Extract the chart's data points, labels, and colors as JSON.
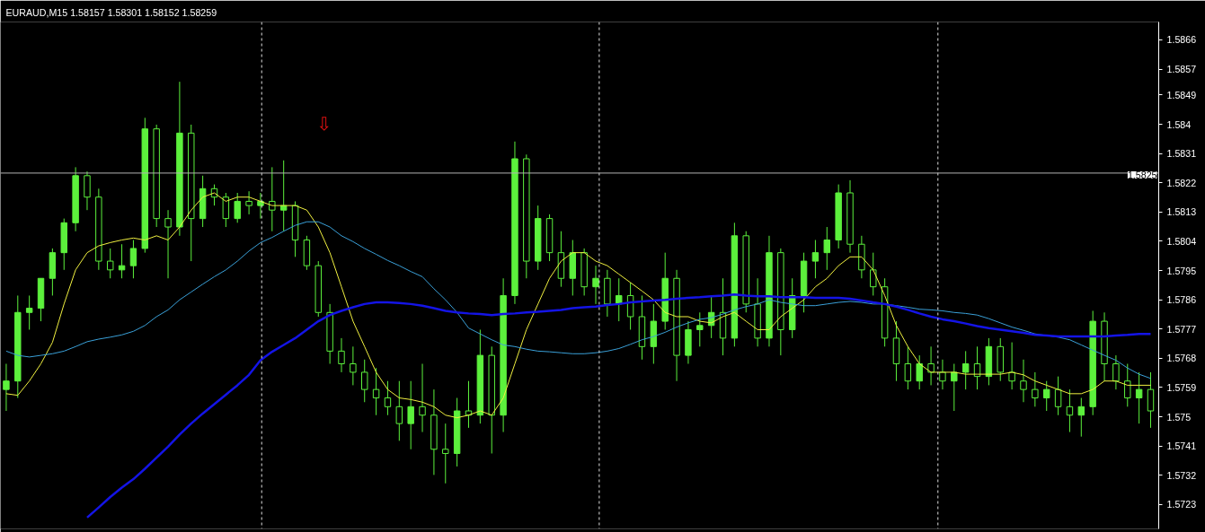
{
  "chart_data": {
    "type": "candlestick",
    "title": "EURAUD,M15  1.58157 1.58301 1.58152 1.58259",
    "color": "#5cf03c",
    "categories": [
      null,
      null,
      null,
      null,
      null,
      null,
      null,
      null,
      null,
      null,
      null,
      null,
      null,
      null,
      null,
      null,
      null,
      null,
      null,
      null,
      null,
      null,
      null,
      null,
      null,
      null,
      null,
      null,
      null,
      null,
      null,
      null,
      null,
      null,
      null,
      null,
      null,
      null,
      null,
      null,
      null,
      null,
      null,
      null,
      null,
      null,
      null,
      null,
      null,
      null,
      null,
      null,
      null,
      null,
      null,
      null,
      null,
      null,
      null,
      null,
      null,
      null,
      null,
      null,
      null,
      null,
      null,
      null,
      null,
      null,
      null,
      null,
      null,
      null,
      null,
      null,
      null,
      null,
      null,
      null,
      null,
      null,
      null,
      null,
      null,
      null,
      null,
      null,
      null,
      null,
      null,
      null,
      null,
      null,
      null,
      null,
      null,
      null,
      null,
      null
    ],
    "ohlc": [
      [
        1.57584,
        1.57663,
        1.57518,
        1.5761
      ],
      [
        1.5761,
        1.57873,
        1.57558,
        1.57821
      ],
      [
        1.57821,
        1.57873,
        1.57768,
        1.57834
      ],
      [
        1.57834,
        1.57926,
        1.57794,
        1.57926
      ],
      [
        1.57926,
        1.58018,
        1.57873,
        1.58005
      ],
      [
        1.58005,
        1.5811,
        1.57952,
        1.58097
      ],
      [
        1.58097,
        1.58268,
        1.58071,
        1.58242
      ],
      [
        1.58242,
        1.58255,
        1.58136,
        1.58176
      ],
      [
        1.58176,
        1.58202,
        1.57952,
        1.57979
      ],
      [
        1.57979,
        1.58018,
        1.57926,
        1.57952
      ],
      [
        1.57952,
        1.58031,
        1.57926,
        1.57965
      ],
      [
        1.57965,
        1.58044,
        1.57926,
        1.58018
      ],
      [
        1.58018,
        1.5842,
        1.58005,
        1.58386
      ],
      [
        1.58386,
        1.58399,
        1.58084,
        1.5811
      ],
      [
        1.5811,
        1.58136,
        1.57926,
        1.58084
      ],
      [
        1.58084,
        1.58531,
        1.58057,
        1.58373
      ],
      [
        1.58373,
        1.58399,
        1.57979,
        1.5811
      ],
      [
        1.5811,
        1.58242,
        1.58084,
        1.58202
      ],
      [
        1.58202,
        1.58215,
        1.5815,
        1.58176
      ],
      [
        1.58176,
        1.58189,
        1.58084,
        1.5811
      ],
      [
        1.5811,
        1.58189,
        1.58097,
        1.58163
      ],
      [
        1.58163,
        1.58194,
        1.58123,
        1.5815
      ],
      [
        1.5815,
        1.58189,
        1.5811,
        1.58163
      ],
      [
        1.58163,
        1.58268,
        1.58071,
        1.58136
      ],
      [
        1.58136,
        1.58289,
        1.58071,
        1.5815
      ],
      [
        1.5815,
        1.58163,
        1.57992,
        1.58044
      ],
      [
        1.58044,
        1.58057,
        1.57952,
        1.57965
      ],
      [
        1.57965,
        1.57979,
        1.57808,
        1.57821
      ],
      [
        1.57821,
        1.57847,
        1.57663,
        1.57702
      ],
      [
        1.57702,
        1.57742,
        1.57637,
        1.57663
      ],
      [
        1.57663,
        1.57716,
        1.57597,
        1.57637
      ],
      [
        1.57637,
        1.57676,
        1.57545,
        1.57584
      ],
      [
        1.57584,
        1.5765,
        1.57505,
        1.57558
      ],
      [
        1.57558,
        1.5761,
        1.57505,
        1.57531
      ],
      [
        1.57531,
        1.5761,
        1.57426,
        1.57479
      ],
      [
        1.57479,
        1.5761,
        1.574,
        1.57531
      ],
      [
        1.57531,
        1.57663,
        1.57453,
        1.57505
      ],
      [
        1.57505,
        1.57584,
        1.57321,
        1.574
      ],
      [
        1.574,
        1.57479,
        1.57295,
        1.57387
      ],
      [
        1.57387,
        1.57558,
        1.57347,
        1.57518
      ],
      [
        1.57518,
        1.5761,
        1.57466,
        1.57505
      ],
      [
        1.57505,
        1.57768,
        1.57479,
        1.57689
      ],
      [
        1.57689,
        1.57716,
        1.57387,
        1.57505
      ],
      [
        1.57505,
        1.57926,
        1.57453,
        1.57873
      ],
      [
        1.57873,
        1.58347,
        1.57847,
        1.58294
      ],
      [
        1.58294,
        1.58307,
        1.57926,
        1.57979
      ],
      [
        1.57979,
        1.5815,
        1.57952,
        1.5811
      ],
      [
        1.5811,
        1.58123,
        1.57979,
        1.58005
      ],
      [
        1.58005,
        1.58071,
        1.579,
        1.57926
      ],
      [
        1.57926,
        1.58044,
        1.57873,
        1.58005
      ],
      [
        1.58005,
        1.58018,
        1.57873,
        1.579
      ],
      [
        1.579,
        1.57965,
        1.57847,
        1.57926
      ],
      [
        1.57926,
        1.57952,
        1.57808,
        1.57847
      ],
      [
        1.57847,
        1.57926,
        1.57794,
        1.57873
      ],
      [
        1.57873,
        1.57913,
        1.57768,
        1.57808
      ],
      [
        1.57808,
        1.57873,
        1.57676,
        1.57716
      ],
      [
        1.57716,
        1.57847,
        1.57663,
        1.57794
      ],
      [
        1.57794,
        1.58005,
        1.57768,
        1.57926
      ],
      [
        1.57926,
        1.57952,
        1.5761,
        1.57689
      ],
      [
        1.57689,
        1.57794,
        1.57663,
        1.57768
      ],
      [
        1.57768,
        1.57821,
        1.57716,
        1.57781
      ],
      [
        1.57781,
        1.57873,
        1.57742,
        1.57821
      ],
      [
        1.57821,
        1.57926,
        1.57689,
        1.57742
      ],
      [
        1.57742,
        1.58097,
        1.57716,
        1.58057
      ],
      [
        1.58057,
        1.58071,
        1.57821,
        1.57847
      ],
      [
        1.57847,
        1.57926,
        1.57716,
        1.57742
      ],
      [
        1.57742,
        1.58057,
        1.57716,
        1.58005
      ],
      [
        1.58005,
        1.58018,
        1.57689,
        1.57768
      ],
      [
        1.57768,
        1.57926,
        1.57742,
        1.57873
      ],
      [
        1.57873,
        1.58005,
        1.57821,
        1.57979
      ],
      [
        1.57979,
        1.58044,
        1.57926,
        1.58005
      ],
      [
        1.58005,
        1.58084,
        1.57952,
        1.58044
      ],
      [
        1.58044,
        1.58215,
        1.58018,
        1.58189
      ],
      [
        1.58189,
        1.58228,
        1.58005,
        1.58031
      ],
      [
        1.58031,
        1.58057,
        1.57926,
        1.57952
      ],
      [
        1.57952,
        1.58005,
        1.57873,
        1.579
      ],
      [
        1.579,
        1.57926,
        1.57716,
        1.57742
      ],
      [
        1.57742,
        1.57794,
        1.5761,
        1.57663
      ],
      [
        1.57663,
        1.57716,
        1.57584,
        1.5761
      ],
      [
        1.5761,
        1.57689,
        1.57584,
        1.57663
      ],
      [
        1.57663,
        1.57716,
        1.57597,
        1.57637
      ],
      [
        1.57637,
        1.57676,
        1.57584,
        1.5761
      ],
      [
        1.5761,
        1.57663,
        1.57518,
        1.57637
      ],
      [
        1.57637,
        1.57702,
        1.57584,
        1.57663
      ],
      [
        1.57663,
        1.57716,
        1.57584,
        1.57624
      ],
      [
        1.57624,
        1.57742,
        1.57597,
        1.57716
      ],
      [
        1.57716,
        1.57742,
        1.5761,
        1.57637
      ],
      [
        1.57637,
        1.57729,
        1.57584,
        1.5761
      ],
      [
        1.5761,
        1.57676,
        1.57545,
        1.57584
      ],
      [
        1.57584,
        1.57637,
        1.57531,
        1.57558
      ],
      [
        1.57558,
        1.5761,
        1.57518,
        1.57584
      ],
      [
        1.57584,
        1.57624,
        1.57505,
        1.57531
      ],
      [
        1.57531,
        1.57584,
        1.57453,
        1.57505
      ],
      [
        1.57505,
        1.57558,
        1.57439,
        1.57531
      ],
      [
        1.57531,
        1.57826,
        1.57505,
        1.57794
      ],
      [
        1.57794,
        1.57821,
        1.5761,
        1.57663
      ],
      [
        1.57663,
        1.57689,
        1.57584,
        1.5761
      ],
      [
        1.5761,
        1.57663,
        1.57531,
        1.57558
      ],
      [
        1.57558,
        1.57637,
        1.57479,
        1.57584
      ],
      [
        1.57584,
        1.57637,
        1.57466,
        1.57518
      ]
    ],
    "series": [
      {
        "type": "line",
        "color": "#f0f040",
        "values": [
          1.57571,
          1.57566,
          1.5761,
          1.57663,
          1.57729,
          1.57847,
          1.57952,
          1.58005,
          1.58026,
          1.58036,
          1.58044,
          1.5805,
          1.58044,
          1.58057,
          1.58044,
          1.58084,
          1.58136,
          1.58176,
          1.58189,
          1.58163,
          1.58176,
          1.58176,
          1.58163,
          1.5815,
          1.5815,
          1.5815,
          1.58136,
          1.58084,
          1.58005,
          1.579,
          1.57794,
          1.57716,
          1.57637,
          1.57584,
          1.57558,
          1.57553,
          1.57545,
          1.57531,
          1.57505,
          1.57497,
          1.57505,
          1.57518,
          1.57505,
          1.57558,
          1.57663,
          1.57768,
          1.57847,
          1.57926,
          1.57979,
          1.58005,
          1.58005,
          1.57979,
          1.57965,
          1.57939,
          1.57913,
          1.57887,
          1.5786,
          1.57821,
          1.57808,
          1.57808,
          1.57794,
          1.57789,
          1.57808,
          1.57821,
          1.57794,
          1.57768,
          1.57768,
          1.57808,
          1.57834,
          1.5786,
          1.579,
          1.57926,
          1.57965,
          1.57992,
          1.57992,
          1.57952,
          1.57873,
          1.57781,
          1.57716,
          1.57663,
          1.57637,
          1.57637,
          1.57637,
          1.57631,
          1.57631,
          1.57631,
          1.57631,
          1.57637,
          1.57629,
          1.5761,
          1.57597,
          1.57584,
          1.57571,
          1.57571,
          1.57584,
          1.5761,
          1.5761,
          1.57597,
          1.57597,
          1.57597
        ]
      },
      {
        "type": "line",
        "color": "#3aa0d8",
        "values": [
          1.57702,
          1.57689,
          1.57684,
          1.57689,
          1.57694,
          1.57702,
          1.57716,
          1.57731,
          1.57739,
          1.57745,
          1.57752,
          1.57763,
          1.57781,
          1.57808,
          1.57829,
          1.5786,
          1.57884,
          1.57908,
          1.57931,
          1.57952,
          1.57979,
          1.5801,
          1.58036,
          1.58052,
          1.58071,
          1.58089,
          1.581,
          1.581,
          1.58084,
          1.58057,
          1.58039,
          1.58018,
          1.58,
          1.57981,
          1.57965,
          1.57947,
          1.57931,
          1.57894,
          1.5786,
          1.57821,
          1.57773,
          1.57755,
          1.57737,
          1.57721,
          1.57716,
          1.57708,
          1.57702,
          1.577,
          1.57697,
          1.57694,
          1.57694,
          1.57697,
          1.57702,
          1.5771,
          1.57723,
          1.57737,
          1.57747,
          1.5776,
          1.57776,
          1.57789,
          1.578,
          1.57805,
          1.57816,
          1.57829,
          1.57839,
          1.57847,
          1.5786,
          1.57852,
          1.57847,
          1.57842,
          1.57842,
          1.57847,
          1.57852,
          1.57855,
          1.57852,
          1.57847,
          1.57847,
          1.57842,
          1.57837,
          1.57831,
          1.57829,
          1.57826,
          1.57821,
          1.57818,
          1.57813,
          1.57802,
          1.57789,
          1.57776,
          1.57766,
          1.57755,
          1.5775,
          1.57745,
          1.57737,
          1.57721,
          1.57705,
          1.57689,
          1.57674,
          1.5765,
          1.57631,
          1.57618
        ]
      },
      {
        "type": "line",
        "color": "#1414e6",
        "values": [
          null,
          null,
          null,
          null,
          null,
          null,
          null,
          1.5719,
          1.57221,
          1.57253,
          1.57282,
          1.57308,
          1.5734,
          1.57374,
          1.57408,
          1.57445,
          1.57479,
          1.5751,
          1.57539,
          1.57568,
          1.57597,
          1.57629,
          1.57674,
          1.577,
          1.57721,
          1.57742,
          1.57768,
          1.57794,
          1.57813,
          1.57826,
          1.57837,
          1.57847,
          1.57852,
          1.57852,
          1.5785,
          1.57847,
          1.57842,
          1.57834,
          1.57826,
          1.57821,
          1.57818,
          1.57816,
          1.57813,
          1.57816,
          1.57818,
          1.57821,
          1.57823,
          1.57826,
          1.57829,
          1.57834,
          1.57837,
          1.57839,
          1.57844,
          1.57847,
          1.57852,
          1.57855,
          1.57858,
          1.5786,
          1.57863,
          1.57866,
          1.57868,
          1.57871,
          1.57873,
          1.57876,
          1.57873,
          1.57871,
          1.57871,
          1.57868,
          1.57868,
          1.57868,
          1.57866,
          1.57866,
          1.57866,
          1.57863,
          1.57858,
          1.57852,
          1.57847,
          1.57839,
          1.57829,
          1.57818,
          1.57808,
          1.578,
          1.57794,
          1.57787,
          1.57779,
          1.57773,
          1.57768,
          1.57763,
          1.57758,
          1.57752,
          1.5775,
          1.57747,
          1.57747,
          1.57747,
          1.57747,
          1.57747,
          1.5775,
          1.57752,
          1.57755,
          1.57755
        ]
      }
    ],
    "ylim": [
      1.57155,
      1.58715
    ],
    "yticks": [
      1.5866,
      1.5857,
      1.5849,
      1.584,
      1.5831,
      1.5822,
      1.5813,
      1.5804,
      1.5795,
      1.5786,
      1.5777,
      1.5768,
      1.5759,
      1.575,
      1.5741,
      1.5732,
      1.5723
    ],
    "ref_lines": [
      {
        "axis": "y",
        "value": 1.5825,
        "label": "1.5825",
        "color": "#b4b4b4"
      }
    ],
    "annotations": [
      "⇩"
    ],
    "tick_labels": "y"
  }
}
